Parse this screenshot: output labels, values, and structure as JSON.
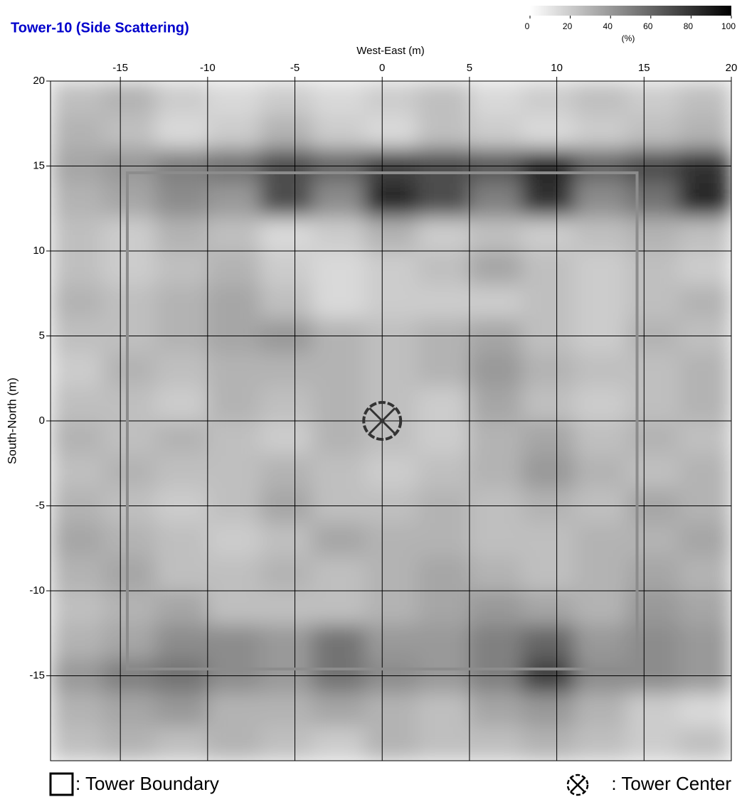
{
  "chart_data": {
    "type": "heatmap",
    "title": "Tower-10 (Side Scattering)",
    "x_label": "West-East (m)",
    "y_label": "South-North (m)",
    "colorbar_label": "(%)",
    "legend": {
      "boundary": ": Tower Boundary",
      "center": ": Tower Center"
    },
    "xlim": [
      -19,
      20
    ],
    "ylim": [
      -20,
      20
    ],
    "xticks": [
      -15,
      -10,
      -5,
      0,
      5,
      10,
      15,
      20
    ],
    "yticks": [
      -15,
      -10,
      -5,
      0,
      5,
      10,
      15,
      20
    ],
    "grid": true,
    "clim": [
      0,
      100
    ],
    "cticks": [
      0,
      20,
      40,
      60,
      80,
      100
    ],
    "tower_boundary": {
      "x": [
        -14.6,
        14.6
      ],
      "y": [
        -14.6,
        14.6
      ]
    },
    "tower_center": [
      0,
      0
    ],
    "x": [
      -17.5,
      -14.5,
      -11.5,
      -8.5,
      -5.5,
      -2.5,
      0.5,
      3.5,
      6.5,
      9.5,
      12.5,
      15.5,
      18.5
    ],
    "y": [
      19,
      17,
      15,
      13,
      11,
      9,
      7,
      5,
      3,
      1,
      -1,
      -3,
      -5,
      -7,
      -9,
      -11,
      -13,
      -15,
      -17,
      -19
    ],
    "z": [
      [
        25,
        30,
        20,
        15,
        20,
        15,
        20,
        25,
        15,
        20,
        25,
        20,
        25
      ],
      [
        30,
        25,
        15,
        20,
        30,
        20,
        15,
        25,
        20,
        15,
        20,
        25,
        30
      ],
      [
        35,
        40,
        50,
        55,
        70,
        60,
        75,
        70,
        65,
        85,
        60,
        70,
        80
      ],
      [
        30,
        35,
        45,
        40,
        70,
        45,
        85,
        70,
        50,
        80,
        45,
        55,
        85
      ],
      [
        25,
        20,
        30,
        25,
        15,
        20,
        30,
        20,
        25,
        20,
        25,
        30,
        25
      ],
      [
        25,
        20,
        25,
        30,
        20,
        15,
        20,
        25,
        35,
        25,
        20,
        25,
        20
      ],
      [
        30,
        25,
        30,
        35,
        25,
        15,
        20,
        20,
        20,
        25,
        20,
        25,
        30
      ],
      [
        25,
        25,
        30,
        35,
        40,
        30,
        25,
        30,
        35,
        25,
        20,
        30,
        25
      ],
      [
        20,
        30,
        25,
        30,
        30,
        30,
        25,
        30,
        40,
        30,
        25,
        25,
        30
      ],
      [
        25,
        25,
        20,
        30,
        25,
        30,
        25,
        20,
        35,
        25,
        20,
        25,
        30
      ],
      [
        30,
        25,
        30,
        25,
        20,
        30,
        25,
        20,
        30,
        35,
        25,
        30,
        25
      ],
      [
        25,
        30,
        25,
        25,
        30,
        25,
        20,
        25,
        30,
        40,
        30,
        25,
        30
      ],
      [
        30,
        25,
        20,
        25,
        35,
        25,
        25,
        30,
        25,
        30,
        25,
        35,
        30
      ],
      [
        35,
        30,
        25,
        20,
        25,
        35,
        30,
        30,
        25,
        25,
        30,
        30,
        35
      ],
      [
        30,
        35,
        25,
        25,
        30,
        25,
        30,
        35,
        30,
        25,
        30,
        35,
        30
      ],
      [
        25,
        30,
        35,
        25,
        25,
        25,
        30,
        35,
        40,
        35,
        30,
        40,
        35
      ],
      [
        30,
        35,
        45,
        45,
        40,
        55,
        40,
        40,
        50,
        60,
        40,
        45,
        40
      ],
      [
        40,
        50,
        55,
        45,
        40,
        55,
        45,
        40,
        50,
        75,
        45,
        45,
        40
      ],
      [
        30,
        35,
        40,
        30,
        30,
        35,
        30,
        25,
        35,
        40,
        30,
        20,
        15
      ],
      [
        25,
        30,
        25,
        30,
        25,
        20,
        30,
        25,
        25,
        30,
        25,
        20,
        25
      ]
    ]
  }
}
